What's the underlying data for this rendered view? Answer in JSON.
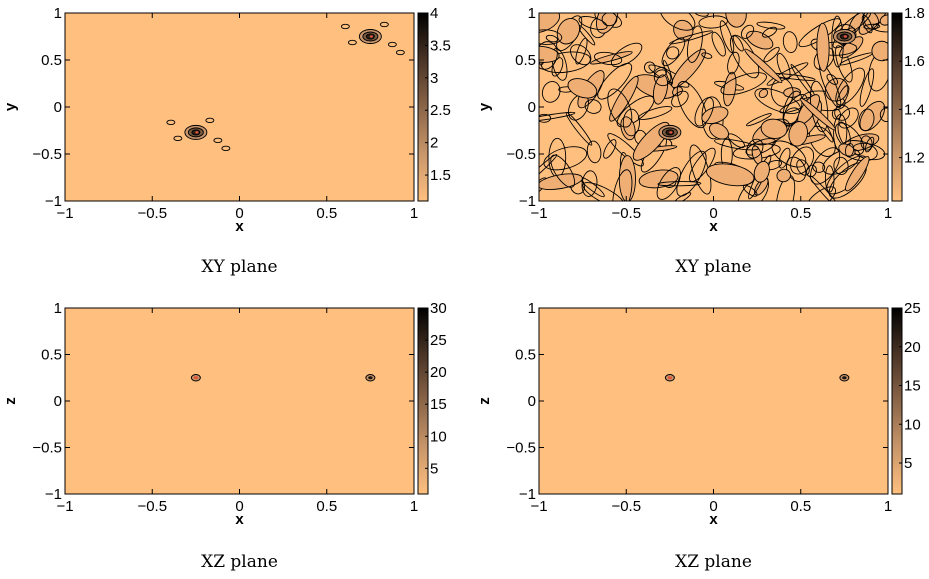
{
  "colors": {
    "background": "#ffc07f",
    "contour": "#000000",
    "colormap": "copper"
  },
  "chart_data": [
    {
      "type": "heatmap",
      "caption": "XY plane",
      "xlabel": "x",
      "ylabel": "y",
      "xlim": [
        -1,
        1
      ],
      "ylim": [
        -1,
        1
      ],
      "xticks": [
        -1,
        -0.5,
        0,
        0.5,
        1
      ],
      "yticks": [
        -1,
        -0.5,
        0,
        0.5,
        1
      ],
      "xtick_labels": [
        "−1",
        "−0.5",
        "0",
        "0.5",
        "1"
      ],
      "ytick_labels": [
        "−1",
        "−0.5",
        "0",
        "0.5",
        "1"
      ],
      "colorbar": {
        "min": 1.1,
        "max": 4,
        "ticks": [
          1.5,
          2,
          2.5,
          3,
          3.5,
          4
        ],
        "tick_labels": [
          "1.5",
          "2",
          "2.5",
          "3",
          "3.5",
          "4"
        ]
      },
      "peaks": [
        {
          "x": -0.25,
          "y": -0.27,
          "value": 4
        },
        {
          "x": 0.75,
          "y": 0.75,
          "value": 4
        }
      ],
      "noise": false
    },
    {
      "type": "heatmap",
      "caption": "XY plane",
      "xlabel": "x",
      "ylabel": "y",
      "xlim": [
        -1,
        1
      ],
      "ylim": [
        -1,
        1
      ],
      "xticks": [
        -1,
        -0.5,
        0,
        0.5,
        1
      ],
      "yticks": [
        -1,
        -0.5,
        0,
        0.5,
        1
      ],
      "xtick_labels": [
        "−1",
        "−0.5",
        "0",
        "0.5",
        "1"
      ],
      "ytick_labels": [
        "−1",
        "−0.5",
        "0",
        "0.5",
        "1"
      ],
      "colorbar": {
        "min": 1.02,
        "max": 1.8,
        "ticks": [
          1.2,
          1.4,
          1.6,
          1.8
        ],
        "tick_labels": [
          "1.2",
          "1.4",
          "1.6",
          "1.8"
        ]
      },
      "peaks": [
        {
          "x": -0.25,
          "y": -0.27,
          "value": 1.8
        },
        {
          "x": 0.75,
          "y": 0.75,
          "value": 1.8
        }
      ],
      "noise": true
    },
    {
      "type": "heatmap",
      "caption": "XZ plane",
      "xlabel": "x",
      "ylabel": "z",
      "xlim": [
        -1,
        1
      ],
      "ylim": [
        -1,
        1
      ],
      "xticks": [
        -1,
        -0.5,
        0,
        0.5,
        1
      ],
      "yticks": [
        -1,
        -0.5,
        0,
        0.5,
        1
      ],
      "xtick_labels": [
        "−1",
        "−0.5",
        "0",
        "0.5",
        "1"
      ],
      "ytick_labels": [
        "−1",
        "−0.5",
        "0",
        "0.5",
        "1"
      ],
      "colorbar": {
        "min": 1,
        "max": 30,
        "ticks": [
          5,
          10,
          15,
          20,
          25,
          30
        ],
        "tick_labels": [
          "5",
          "10",
          "15",
          "20",
          "25",
          "30"
        ]
      },
      "peaks": [
        {
          "x": -0.25,
          "y": 0.25,
          "value": 30
        },
        {
          "x": 0.75,
          "y": 0.25,
          "value": 30
        }
      ],
      "noise": false
    },
    {
      "type": "heatmap",
      "caption": "XZ plane",
      "xlabel": "x",
      "ylabel": "z",
      "xlim": [
        -1,
        1
      ],
      "ylim": [
        -1,
        1
      ],
      "xticks": [
        -1,
        -0.5,
        0,
        0.5,
        1
      ],
      "yticks": [
        -1,
        -0.5,
        0,
        0.5,
        1
      ],
      "xtick_labels": [
        "−1",
        "−0.5",
        "0",
        "0.5",
        "1"
      ],
      "ytick_labels": [
        "−1",
        "−0.5",
        "0",
        "0.5",
        "1"
      ],
      "colorbar": {
        "min": 1,
        "max": 25,
        "ticks": [
          5,
          10,
          15,
          20,
          25
        ],
        "tick_labels": [
          "5",
          "10",
          "15",
          "20",
          "25"
        ]
      },
      "peaks": [
        {
          "x": -0.25,
          "y": 0.25,
          "value": 25
        },
        {
          "x": 0.75,
          "y": 0.25,
          "value": 25
        }
      ],
      "noise": false
    }
  ]
}
